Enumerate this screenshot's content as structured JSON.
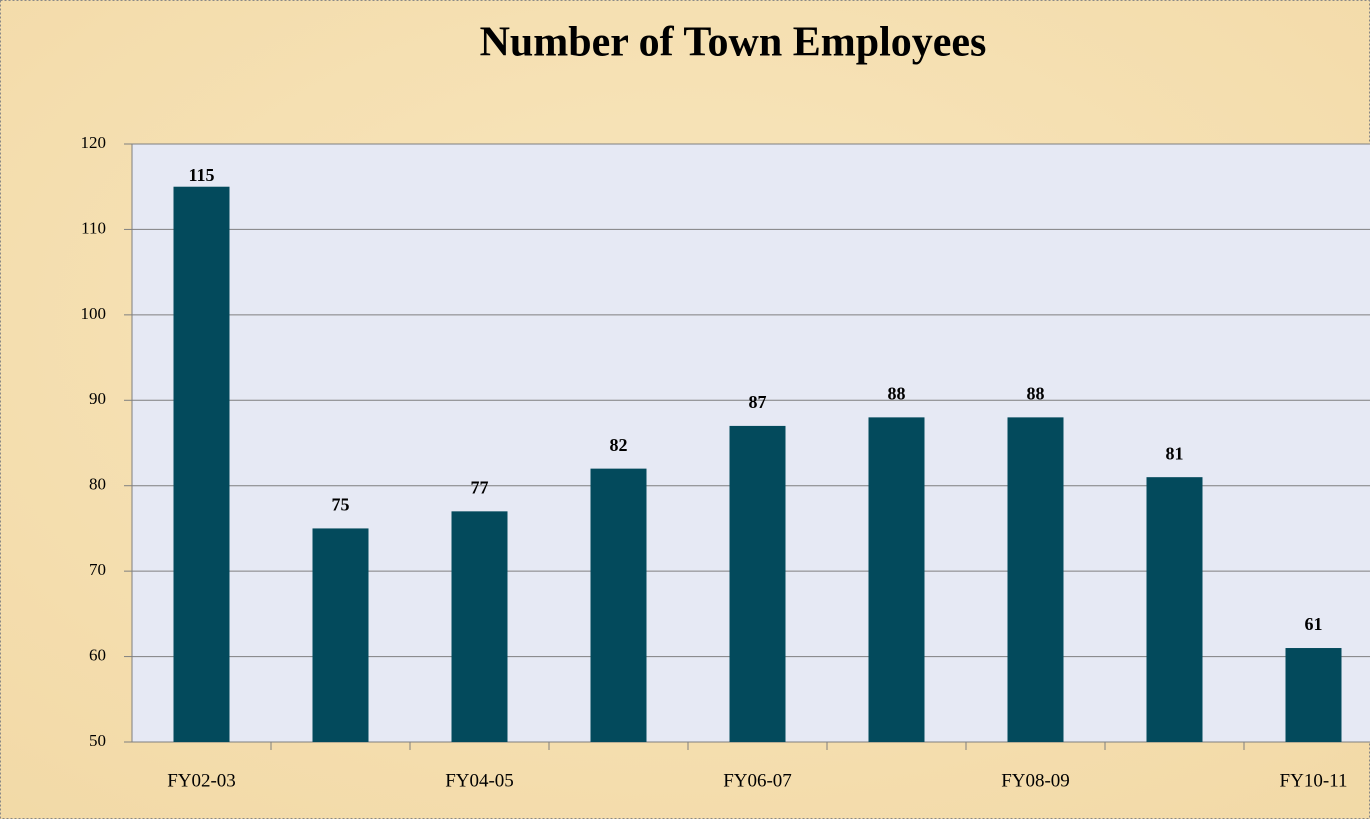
{
  "chart_data": {
    "type": "bar",
    "title": "Number of Town Employees",
    "categories": [
      "FY02-03",
      null,
      "FY04-05",
      null,
      "FY06-07",
      null,
      "FY08-09",
      null,
      "FY10-11"
    ],
    "values": [
      115,
      75,
      77,
      82,
      87,
      88,
      88,
      81,
      61
    ],
    "color": "#034a5c",
    "ylim": [
      50,
      120
    ],
    "yticks": [
      50,
      60,
      70,
      80,
      90,
      100,
      110,
      120
    ],
    "grid": true
  }
}
